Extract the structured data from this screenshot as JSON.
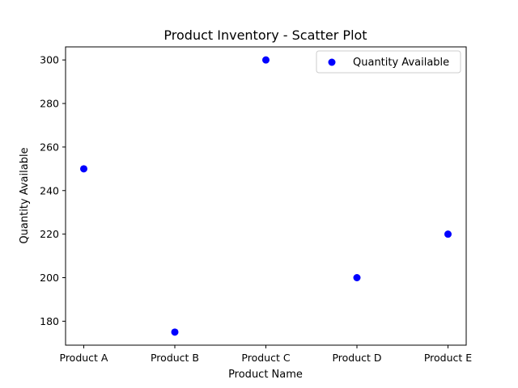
{
  "chart_data": {
    "type": "scatter",
    "title": "Product Inventory - Scatter Plot",
    "xlabel": "Product Name",
    "ylabel": "Quantity Available",
    "categories": [
      "Product A",
      "Product B",
      "Product C",
      "Product D",
      "Product E"
    ],
    "series": [
      {
        "name": "Quantity Available",
        "values": [
          250,
          175,
          300,
          200,
          220
        ],
        "color": "#0000ff"
      }
    ],
    "ylim": [
      169,
      306
    ],
    "yticks": [
      180,
      200,
      220,
      240,
      260,
      280,
      300
    ],
    "grid": false,
    "legend_position": "top-right"
  }
}
